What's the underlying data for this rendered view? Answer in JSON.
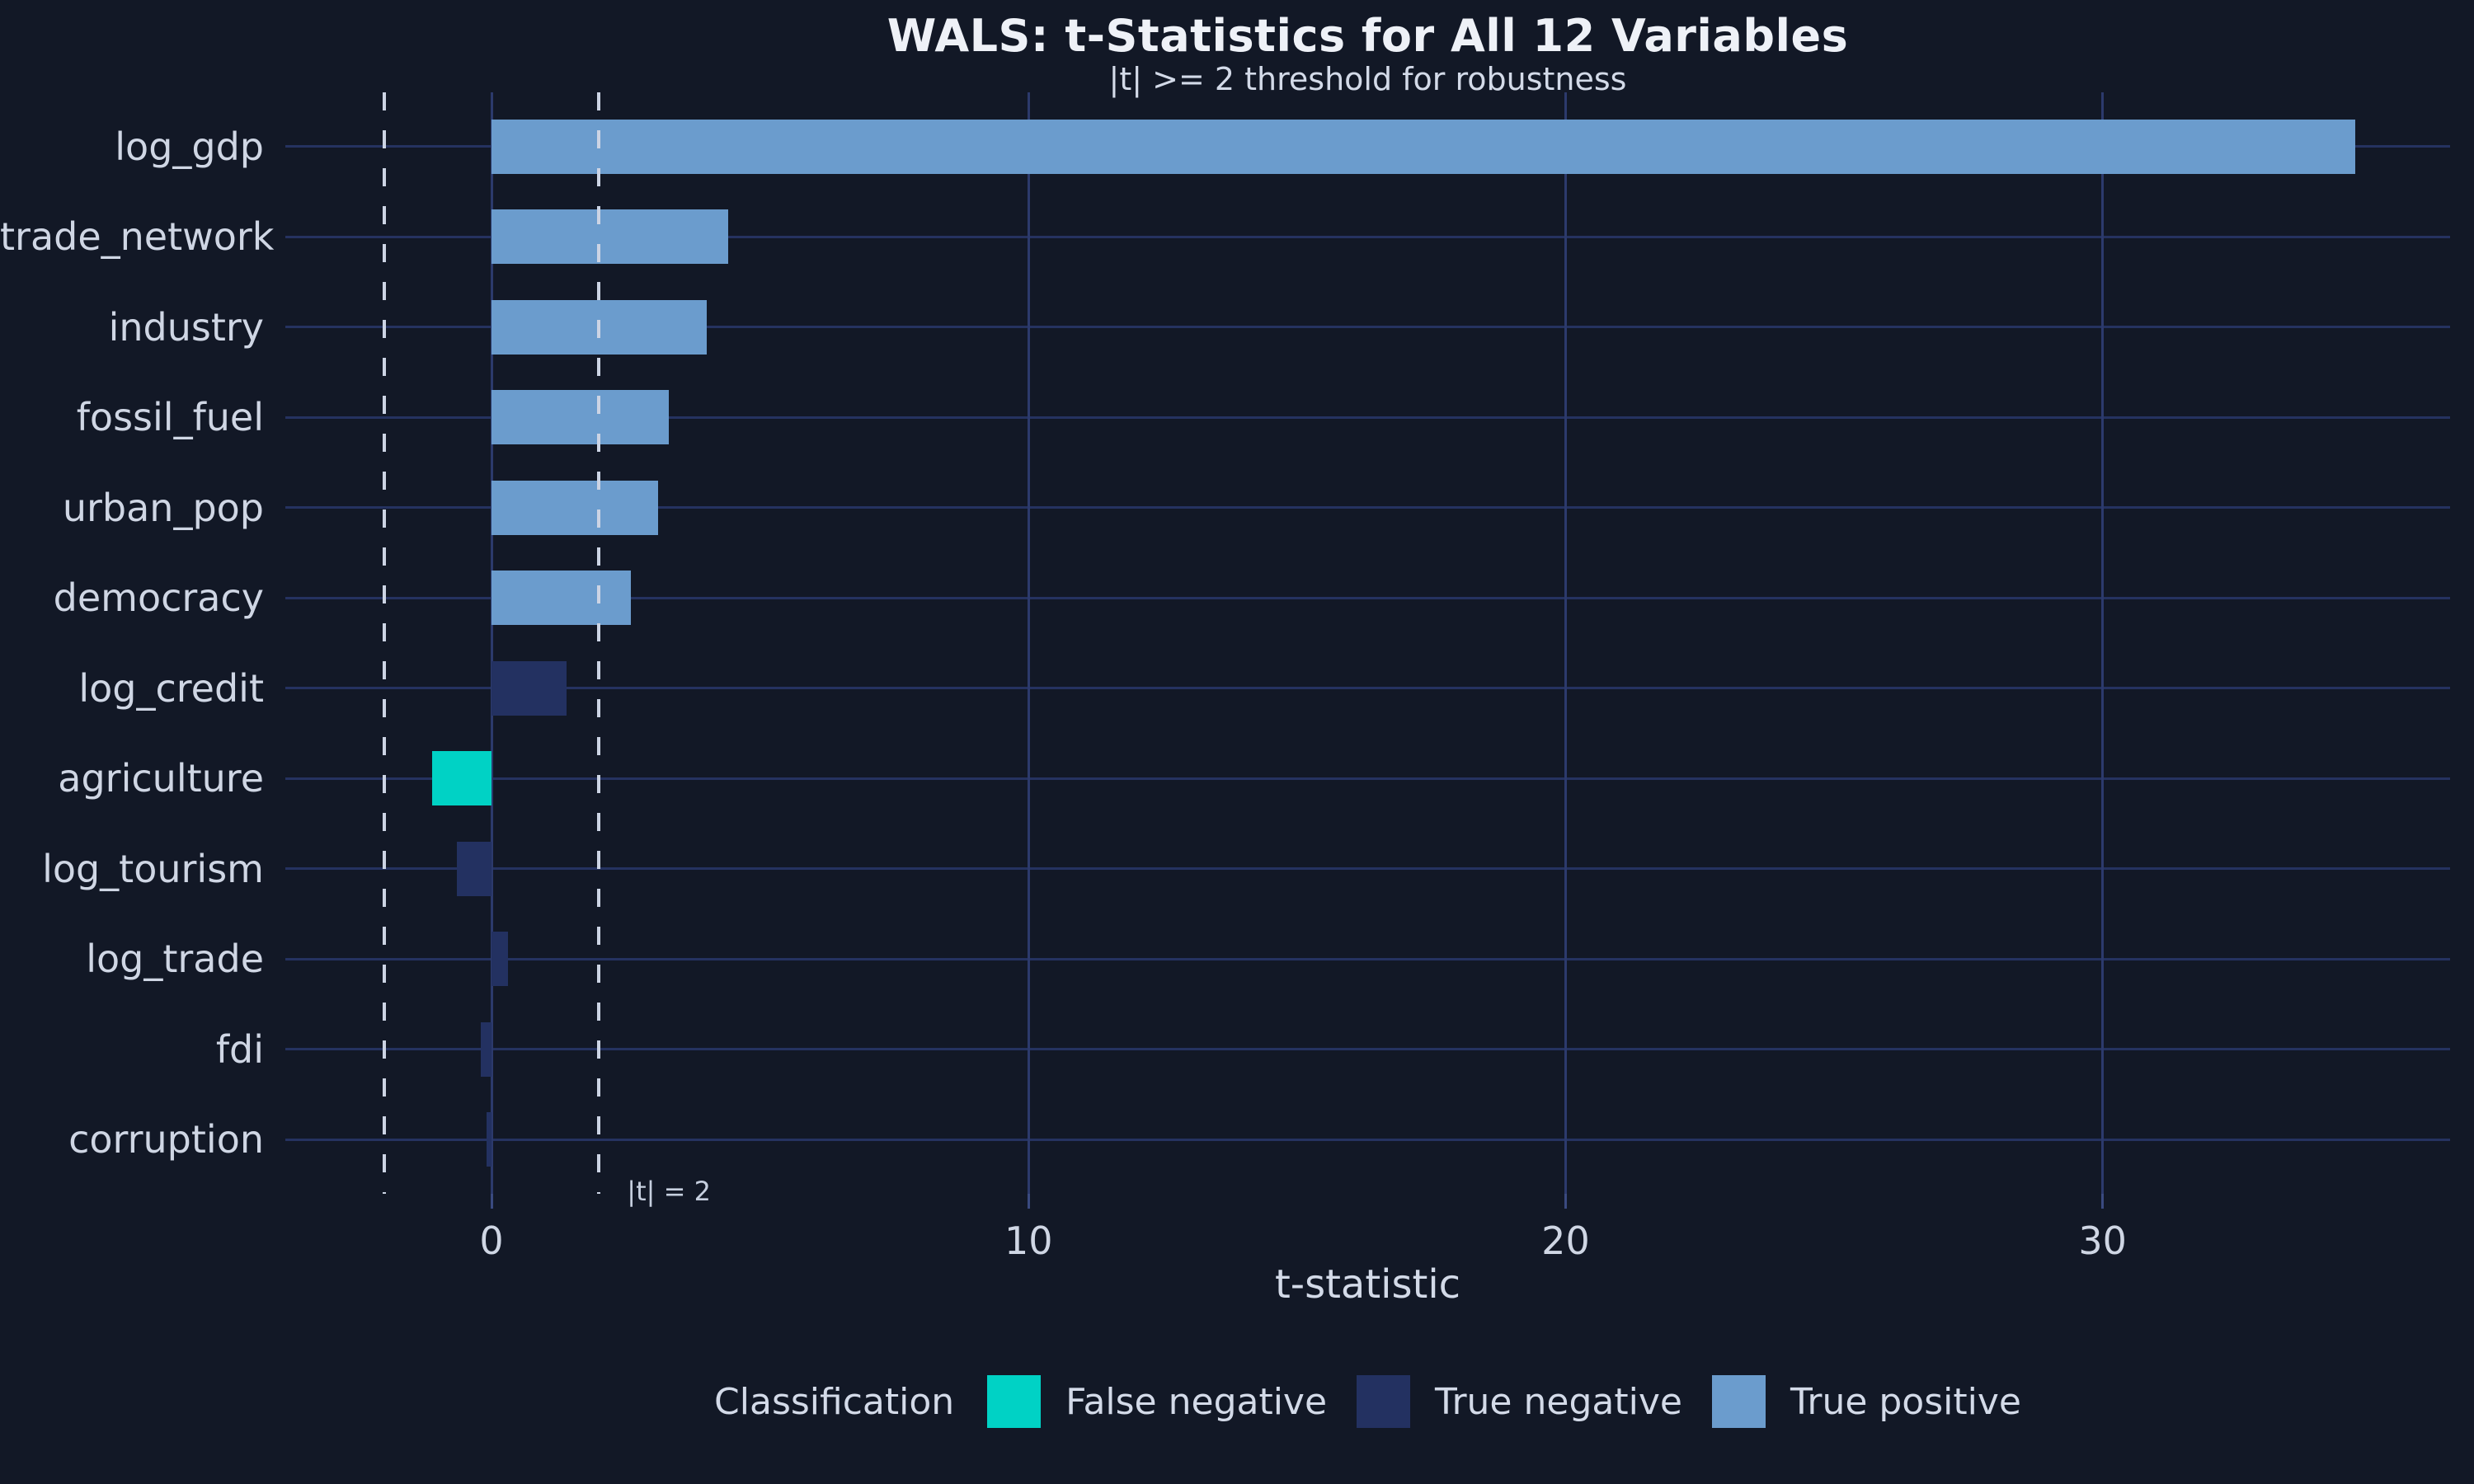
{
  "header": {
    "title": "WALS: t-Statistics for All 12 Variables",
    "subtitle": "|t| >= 2 threshold for robustness"
  },
  "axes": {
    "x_title": "t-statistic",
    "x_ticks": [
      0,
      10,
      20,
      30
    ]
  },
  "annotation": {
    "label": "|t| = 2",
    "threshold_value": 2
  },
  "legend": {
    "title": "Classification",
    "items": [
      {
        "label": "False negative",
        "color": "#00d2c5"
      },
      {
        "label": "True negative",
        "color": "#233161"
      },
      {
        "label": "True positive",
        "color": "#6b9ccd"
      }
    ]
  },
  "colors": {
    "background": "#121826",
    "bar_true_positive": "#6b9ccd",
    "bar_true_negative": "#233161",
    "bar_false_negative": "#00d2c5",
    "grid_horizontal": "#253260",
    "grid_vertical": "#2c3a6c",
    "axis_tick": "#3a4a80",
    "threshold_dash": "#ccd4e4",
    "title_text": "#eef1f7",
    "label_text": "#cfd6e4"
  },
  "chart_data": {
    "type": "bar",
    "orientation": "horizontal",
    "title": "WALS: t-Statistics for All 12 Variables",
    "subtitle": "|t| >= 2 threshold for robustness",
    "xlabel": "t-statistic",
    "ylabel": "",
    "xlim": [
      -3.84,
      36.47
    ],
    "x_ticks": [
      0,
      10,
      20,
      30
    ],
    "threshold_lines": [
      -2,
      2
    ],
    "grid": "horizontal line per category + vertical lines at major x ticks",
    "legend_position": "bottom",
    "categories": [
      "log_gdp",
      "trade_network",
      "industry",
      "fossil_fuel",
      "urban_pop",
      "democracy",
      "log_credit",
      "agriculture",
      "log_tourism",
      "log_trade",
      "fdi",
      "corruption"
    ],
    "series": [
      {
        "name": "t-statistic",
        "values": [
          34.7,
          4.4,
          4.0,
          3.3,
          3.1,
          2.6,
          1.4,
          -1.1,
          -0.65,
          0.3,
          -0.2,
          -0.1
        ]
      }
    ],
    "classifications": [
      "True positive",
      "True positive",
      "True positive",
      "True positive",
      "True positive",
      "True positive",
      "True negative",
      "False negative",
      "True negative",
      "True negative",
      "True negative",
      "True negative"
    ]
  }
}
